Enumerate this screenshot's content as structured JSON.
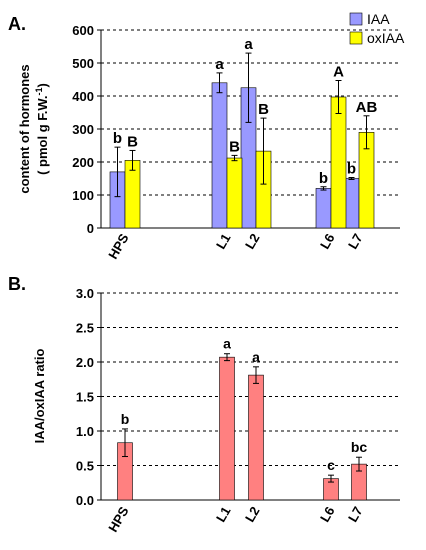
{
  "chart_data": [
    {
      "type": "bar",
      "panel_label": "A.",
      "categories": [
        "HPS",
        "L1",
        "L2",
        "L6",
        "L7"
      ],
      "ylabel_line1": "content of hormones",
      "ylabel_line2": "( pmol g F.W.",
      "ylabel_sup": "-1",
      "ylabel_end": ")",
      "ylim": [
        0,
        600
      ],
      "yticks": [
        0,
        100,
        200,
        300,
        400,
        500,
        600
      ],
      "grid": true,
      "legend_position": "top-right",
      "series": [
        {
          "name": "IAA",
          "color": "#9999ff",
          "values": [
            170,
            440,
            425,
            120,
            150
          ],
          "errors": [
            75,
            30,
            105,
            5,
            3
          ],
          "letters": [
            "b",
            "a",
            "a",
            "b",
            "b"
          ]
        },
        {
          "name": "oxIAA",
          "color": "#ffff00",
          "values": [
            205,
            212,
            233,
            397,
            290
          ],
          "errors": [
            30,
            8,
            100,
            50,
            50
          ],
          "letters": [
            "B",
            "B",
            "B",
            "A",
            "AB"
          ]
        }
      ]
    },
    {
      "type": "bar",
      "panel_label": "B.",
      "categories": [
        "HPS",
        "L1",
        "L2",
        "L6",
        "L7"
      ],
      "ylabel": "IAA/oxIAA ratio",
      "ylim": [
        0,
        3.0
      ],
      "yticks": [
        "0.0",
        "0.5",
        "1.0",
        "1.5",
        "2.0",
        "2.5",
        "3.0"
      ],
      "grid": true,
      "series": [
        {
          "color": "#ff8080",
          "values": [
            0.83,
            2.07,
            1.81,
            0.31,
            0.52
          ],
          "errors": [
            0.2,
            0.05,
            0.12,
            0.05,
            0.1
          ],
          "letters": [
            "b",
            "a",
            "a",
            "c",
            "bc"
          ]
        }
      ]
    }
  ]
}
